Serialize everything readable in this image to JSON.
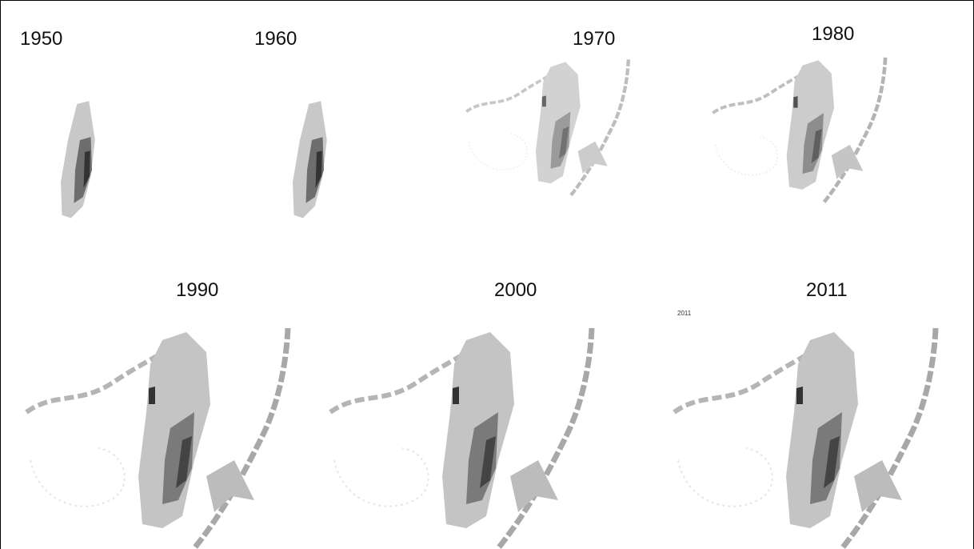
{
  "panels": [
    {
      "label": "1950"
    },
    {
      "label": "1960"
    },
    {
      "label": "1970"
    },
    {
      "label": "1980"
    },
    {
      "label": "1990"
    },
    {
      "label": "2000"
    },
    {
      "label": "2011"
    }
  ],
  "small_label": "2011"
}
